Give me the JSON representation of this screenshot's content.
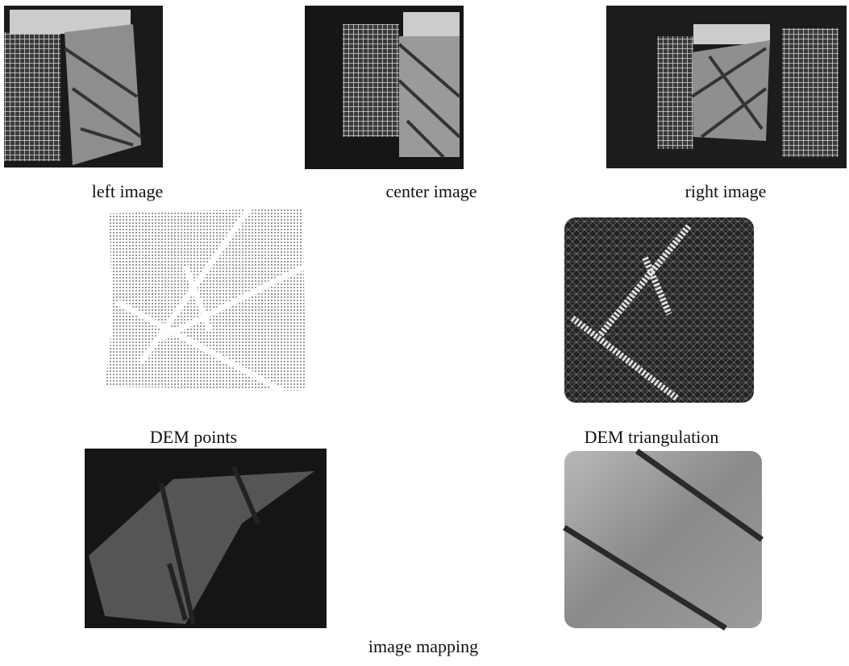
{
  "captions": [
    "left image",
    "center image",
    "right image",
    "DEM points",
    "DEM triangulation",
    "image mapping"
  ]
}
